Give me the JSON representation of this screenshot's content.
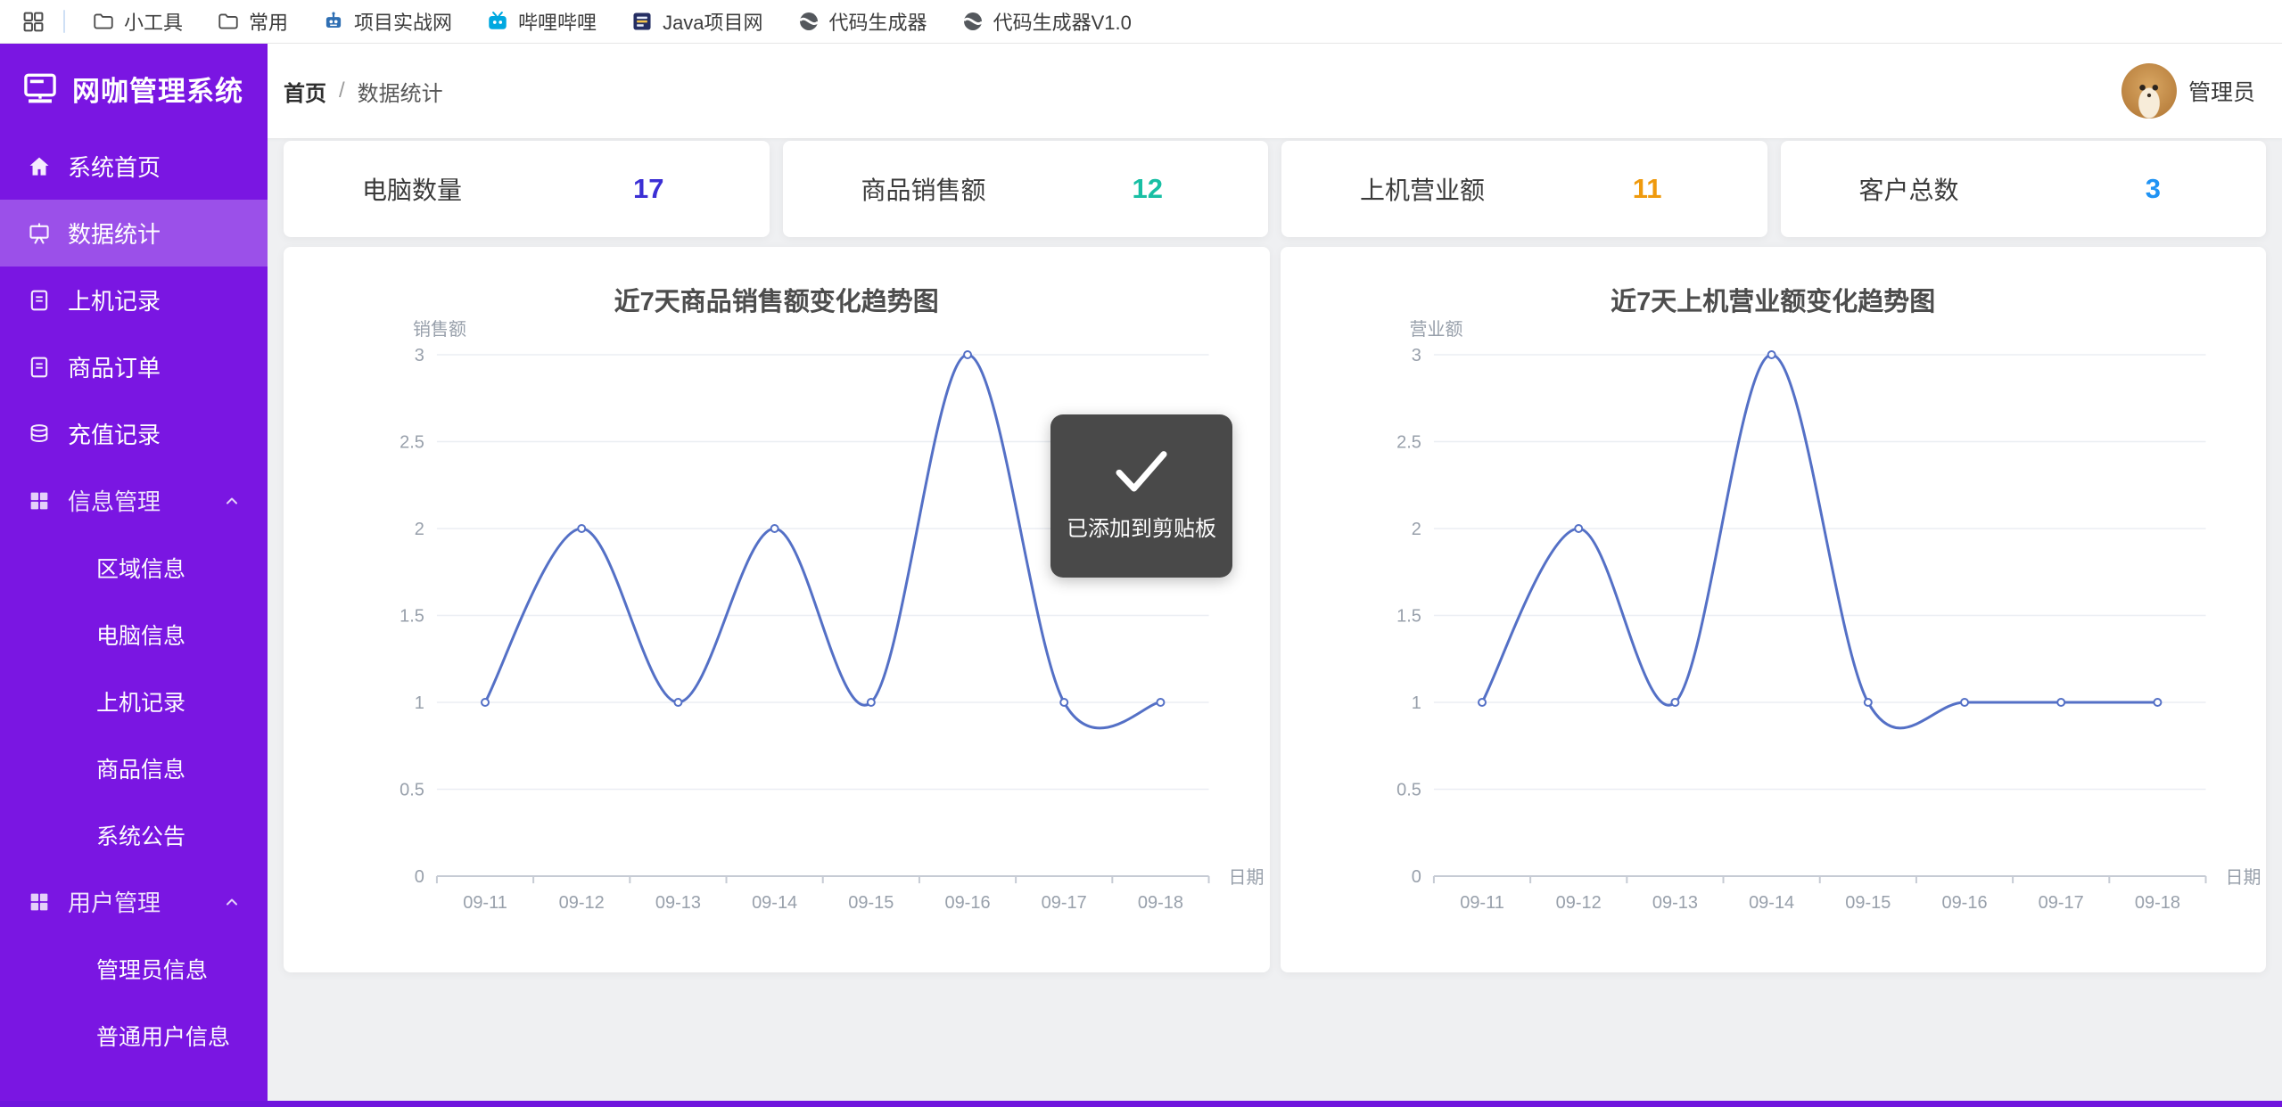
{
  "bookmarks_bar": {
    "items": [
      {
        "label": "小工具",
        "icon": "folder-icon"
      },
      {
        "label": "常用",
        "icon": "folder-icon"
      },
      {
        "label": "项目实战网",
        "icon": "robot-icon"
      },
      {
        "label": "哔哩哔哩",
        "icon": "bilibili-icon"
      },
      {
        "label": "Java项目网",
        "icon": "java-site-icon"
      },
      {
        "label": "代码生成器",
        "icon": "globe-icon"
      },
      {
        "label": "代码生成器V1.0",
        "icon": "globe-icon"
      }
    ]
  },
  "sidebar": {
    "title": "网咖管理系统",
    "accent_color": "#7a16e2",
    "items": [
      {
        "label": "系统首页",
        "icon": "home-icon",
        "active": false
      },
      {
        "label": "数据统计",
        "icon": "board-icon",
        "active": true
      },
      {
        "label": "上机记录",
        "icon": "doc-icon",
        "active": false
      },
      {
        "label": "商品订单",
        "icon": "doc-icon",
        "active": false
      },
      {
        "label": "充值记录",
        "icon": "database-icon",
        "active": false
      },
      {
        "label": "信息管理",
        "icon": "grid-icon",
        "group": true,
        "expanded": true,
        "children": [
          "区域信息",
          "电脑信息",
          "上机记录",
          "商品信息",
          "系统公告"
        ]
      },
      {
        "label": "用户管理",
        "icon": "grid-icon",
        "group": true,
        "expanded": true,
        "children": [
          "管理员信息",
          "普通用户信息"
        ]
      }
    ]
  },
  "header": {
    "breadcrumb": {
      "home": "首页",
      "separator": "/",
      "current": "数据统计"
    },
    "user_label": "管理员"
  },
  "stats": [
    {
      "label": "电脑数量",
      "value": "17",
      "color": "#3b2fd4"
    },
    {
      "label": "商品销售额",
      "value": "12",
      "color": "#18bfa4"
    },
    {
      "label": "上机营业额",
      "value": "11",
      "color": "#ef9a0d"
    },
    {
      "label": "客户总数",
      "value": "3",
      "color": "#1f93f4"
    }
  ],
  "toast": {
    "message": "已添加到剪贴板",
    "icon": "check-icon"
  },
  "chart_data": [
    {
      "type": "line",
      "title": "近7天商品销售额变化趋势图",
      "ylabel": "销售额",
      "xlabel": "日期",
      "categories": [
        "09-11",
        "09-12",
        "09-13",
        "09-14",
        "09-15",
        "09-16",
        "09-17",
        "09-18"
      ],
      "values": [
        1,
        2,
        1,
        2,
        1,
        3,
        1,
        1
      ],
      "ylim": [
        0,
        3
      ],
      "ytick_step": 0.5,
      "grid": true,
      "smooth": true,
      "line_color": "#5470c6"
    },
    {
      "type": "line",
      "title": "近7天上机营业额变化趋势图",
      "ylabel": "营业额",
      "xlabel": "日期",
      "categories": [
        "09-11",
        "09-12",
        "09-13",
        "09-14",
        "09-15",
        "09-16",
        "09-17",
        "09-18"
      ],
      "values": [
        1,
        2,
        1,
        3,
        1,
        1,
        1,
        1
      ],
      "ylim": [
        0,
        3
      ],
      "ytick_step": 0.5,
      "grid": true,
      "smooth": true,
      "line_color": "#5470c6"
    }
  ]
}
